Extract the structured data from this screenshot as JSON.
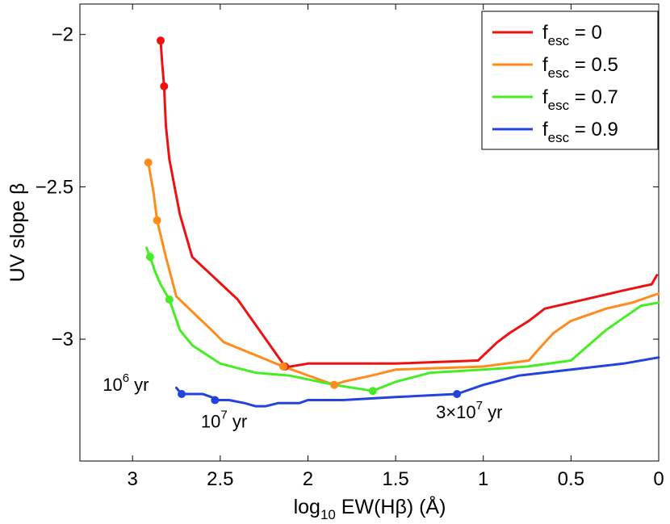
{
  "chart_data": {
    "type": "line",
    "xlabel": {
      "prefix": "log",
      "sub": "10",
      "rest": " EW(Hβ) (Å)"
    },
    "ylabel": "UV slope β",
    "xlim": [
      3.3,
      0
    ],
    "ylim": [
      -3.4,
      -1.9
    ],
    "x_reversed": true,
    "x_ticks": [
      3,
      2.5,
      2,
      1.5,
      1,
      0.5,
      0
    ],
    "x_tick_labels": [
      "3",
      "2.5",
      "2",
      "1.5",
      "1",
      "0.5",
      "0"
    ],
    "y_ticks": [
      -2,
      -2.5,
      -3
    ],
    "y_tick_labels": [
      "−2",
      "−2.5",
      "−3"
    ],
    "legend_position": "top-right",
    "series": [
      {
        "name": "f_esc = 0",
        "legend": {
          "base": "f",
          "sub": "esc",
          "rest": " = 0"
        },
        "color": "#ee1111",
        "points": [
          [
            2.84,
            -2.02
          ],
          [
            2.83,
            -2.1
          ],
          [
            2.82,
            -2.17
          ],
          [
            2.81,
            -2.3
          ],
          [
            2.79,
            -2.41
          ],
          [
            2.76,
            -2.5
          ],
          [
            2.73,
            -2.59
          ],
          [
            2.69,
            -2.67
          ],
          [
            2.66,
            -2.73
          ],
          [
            2.4,
            -2.87
          ],
          [
            2.13,
            -3.09
          ],
          [
            2.1,
            -3.09
          ],
          [
            2.0,
            -3.08
          ],
          [
            1.85,
            -3.08
          ],
          [
            1.5,
            -3.08
          ],
          [
            1.03,
            -3.07
          ],
          [
            0.92,
            -3.01
          ],
          [
            0.85,
            -2.98
          ],
          [
            0.74,
            -2.94
          ],
          [
            0.65,
            -2.9
          ],
          [
            0.5,
            -2.88
          ],
          [
            0.2,
            -2.84
          ],
          [
            0.04,
            -2.82
          ],
          [
            0.01,
            -2.79
          ]
        ],
        "markers": [
          [
            2.84,
            -2.02
          ],
          [
            2.82,
            -2.17
          ],
          [
            2.13,
            -3.09
          ]
        ]
      },
      {
        "name": "f_esc = 0.5",
        "legend": {
          "base": "f",
          "sub": "esc",
          "rest": " = 0.5"
        },
        "color": "#ff8c1a",
        "points": [
          [
            2.91,
            -2.42
          ],
          [
            2.88,
            -2.52
          ],
          [
            2.86,
            -2.61
          ],
          [
            2.81,
            -2.73
          ],
          [
            2.75,
            -2.86
          ],
          [
            2.55,
            -2.97
          ],
          [
            2.48,
            -3.01
          ],
          [
            2.14,
            -3.09
          ],
          [
            1.85,
            -3.15
          ],
          [
            1.8,
            -3.14
          ],
          [
            1.64,
            -3.12
          ],
          [
            1.5,
            -3.1
          ],
          [
            1.0,
            -3.09
          ],
          [
            0.74,
            -3.07
          ],
          [
            0.68,
            -3.03
          ],
          [
            0.6,
            -2.98
          ],
          [
            0.5,
            -2.94
          ],
          [
            0.3,
            -2.9
          ],
          [
            0.15,
            -2.88
          ],
          [
            0.0,
            -2.85
          ]
        ],
        "markers": [
          [
            2.91,
            -2.42
          ],
          [
            2.86,
            -2.61
          ],
          [
            2.14,
            -3.09
          ],
          [
            1.85,
            -3.15
          ]
        ]
      },
      {
        "name": "f_esc = 0.7",
        "legend": {
          "base": "f",
          "sub": "esc",
          "rest": " = 0.7"
        },
        "color": "#44ee22",
        "points": [
          [
            2.92,
            -2.7
          ],
          [
            2.9,
            -2.73
          ],
          [
            2.87,
            -2.78
          ],
          [
            2.84,
            -2.82
          ],
          [
            2.79,
            -2.87
          ],
          [
            2.73,
            -2.97
          ],
          [
            2.66,
            -3.02
          ],
          [
            2.5,
            -3.08
          ],
          [
            2.3,
            -3.11
          ],
          [
            2.1,
            -3.12
          ],
          [
            1.85,
            -3.15
          ],
          [
            1.63,
            -3.17
          ],
          [
            1.5,
            -3.14
          ],
          [
            1.3,
            -3.11
          ],
          [
            1.0,
            -3.1
          ],
          [
            0.75,
            -3.09
          ],
          [
            0.5,
            -3.07
          ],
          [
            0.3,
            -2.97
          ],
          [
            0.2,
            -2.93
          ],
          [
            0.1,
            -2.89
          ],
          [
            0.0,
            -2.88
          ]
        ],
        "markers": [
          [
            2.9,
            -2.73
          ],
          [
            2.79,
            -2.87
          ],
          [
            1.63,
            -3.17
          ]
        ]
      },
      {
        "name": "f_esc = 0.9",
        "legend": {
          "base": "f",
          "sub": "esc",
          "rest": " = 0.9"
        },
        "color": "#2244dd",
        "points": [
          [
            2.75,
            -3.16
          ],
          [
            2.72,
            -3.18
          ],
          [
            2.65,
            -3.18
          ],
          [
            2.6,
            -3.18
          ],
          [
            2.55,
            -3.19
          ],
          [
            2.53,
            -3.2
          ],
          [
            2.45,
            -3.2
          ],
          [
            2.36,
            -3.21
          ],
          [
            2.3,
            -3.22
          ],
          [
            2.24,
            -3.22
          ],
          [
            2.17,
            -3.21
          ],
          [
            2.05,
            -3.21
          ],
          [
            2.0,
            -3.2
          ],
          [
            1.8,
            -3.2
          ],
          [
            1.5,
            -3.19
          ],
          [
            1.15,
            -3.18
          ],
          [
            1.0,
            -3.15
          ],
          [
            0.8,
            -3.12
          ],
          [
            0.5,
            -3.1
          ],
          [
            0.2,
            -3.08
          ],
          [
            0.0,
            -3.06
          ]
        ],
        "markers": [
          [
            2.72,
            -3.18
          ],
          [
            2.53,
            -3.2
          ],
          [
            1.15,
            -3.18
          ]
        ]
      }
    ],
    "annotations": [
      {
        "base": "10",
        "sup": "6",
        "rest": " yr",
        "x": 3.17,
        "y": -3.17
      },
      {
        "base": "10",
        "sup": "7",
        "rest": " yr",
        "x": 2.61,
        "y": -3.29
      },
      {
        "base": "3×10",
        "sup": "7",
        "rest": " yr",
        "x": 1.27,
        "y": -3.26
      }
    ]
  }
}
